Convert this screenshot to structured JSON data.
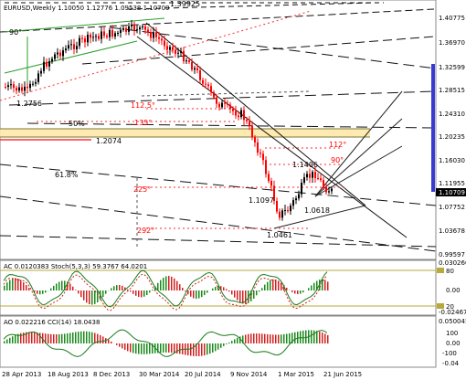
{
  "main": {
    "header_text": "EURUSD,Weekly  1.10050 1.12776 1.09538 1.10709",
    "price_ticks": [
      "1.40775",
      "1.36970",
      "1.32599",
      "1.28515",
      "1.24310",
      "1.20235",
      "1.16030",
      "1.11955",
      "1.07752",
      "1.03678",
      "0.99597"
    ],
    "current_price": "1.10709",
    "fib_labels": [
      "90°",
      "112.5°",
      "135°",
      "90%",
      "61.8%",
      "225°",
      "292°",
      "112°",
      "90°",
      "25°"
    ],
    "price_labels": [
      "1.39925",
      "1.2756",
      "1.2074",
      "1.1406",
      "1.1097",
      "1.0618",
      "1.0461"
    ],
    "percent_labels": [
      "50%",
      "61.8%"
    ]
  },
  "ac_panel": {
    "header_text": "AC 0.0120383  Stoch(5,3,3) 59.3767 64.0201",
    "ticks": [
      "0.030260",
      "80",
      "0.00",
      "20",
      "-0.024670"
    ]
  },
  "ao_panel": {
    "header_text": "AO 0.022216  CCI(14) 18.0438",
    "ticks": [
      "0.050045",
      "100",
      "0.00",
      "-100",
      "-0.04"
    ]
  },
  "time_axis": {
    "labels": [
      "28 Apr 2013",
      "18 Aug 2013",
      "8 Dec 2013",
      "30 Mar 2014",
      "20 Jul 2014",
      "9 Nov 2014",
      "1 Mar 2015",
      "21 Jun 2015"
    ]
  },
  "colors": {
    "up_candle": "#000000",
    "down_candle": "#ff0000",
    "highlight_band": "#ffe9a8",
    "price_box": "#000000",
    "scrollbar": "#3a3ad0"
  }
}
